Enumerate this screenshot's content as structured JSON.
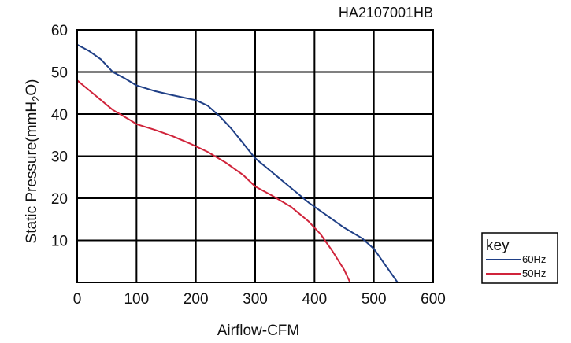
{
  "chart_data": {
    "type": "line",
    "title": "HA2107001HB",
    "xlabel": "Airflow-CFM",
    "ylabel_main": "Static Pressure(mmH",
    "ylabel_sub": "2",
    "ylabel_end": "O)",
    "xlim": [
      0,
      600
    ],
    "ylim": [
      0,
      60
    ],
    "x_ticks": [
      0,
      100,
      200,
      300,
      400,
      500,
      600
    ],
    "y_ticks": [
      10,
      20,
      30,
      40,
      50,
      60
    ],
    "grid": true,
    "legend": {
      "title": "key",
      "placement": "right"
    },
    "series": [
      {
        "name": "60Hz",
        "color": "#1f3f86",
        "points": [
          [
            0,
            56.5
          ],
          [
            20,
            55
          ],
          [
            40,
            53
          ],
          [
            60,
            50
          ],
          [
            80,
            48.5
          ],
          [
            100,
            46.8
          ],
          [
            130,
            45.5
          ],
          [
            160,
            44.5
          ],
          [
            200,
            43.3
          ],
          [
            220,
            42
          ],
          [
            240,
            39.5
          ],
          [
            260,
            36.5
          ],
          [
            280,
            33
          ],
          [
            300,
            29.5
          ],
          [
            330,
            26
          ],
          [
            360,
            22.5
          ],
          [
            390,
            19
          ],
          [
            420,
            16
          ],
          [
            450,
            13
          ],
          [
            480,
            10.5
          ],
          [
            500,
            8
          ],
          [
            520,
            4
          ],
          [
            540,
            0
          ]
        ]
      },
      {
        "name": "50Hz",
        "color": "#d0243b",
        "points": [
          [
            0,
            48
          ],
          [
            30,
            44.5
          ],
          [
            60,
            41
          ],
          [
            90,
            38.5
          ],
          [
            100,
            37.6
          ],
          [
            130,
            36.3
          ],
          [
            160,
            34.8
          ],
          [
            190,
            33
          ],
          [
            220,
            31
          ],
          [
            250,
            28.5
          ],
          [
            280,
            25.5
          ],
          [
            300,
            22.8
          ],
          [
            330,
            20.5
          ],
          [
            360,
            18
          ],
          [
            390,
            14.5
          ],
          [
            410,
            11.5
          ],
          [
            430,
            7.5
          ],
          [
            450,
            3
          ],
          [
            460,
            0
          ]
        ]
      }
    ]
  }
}
